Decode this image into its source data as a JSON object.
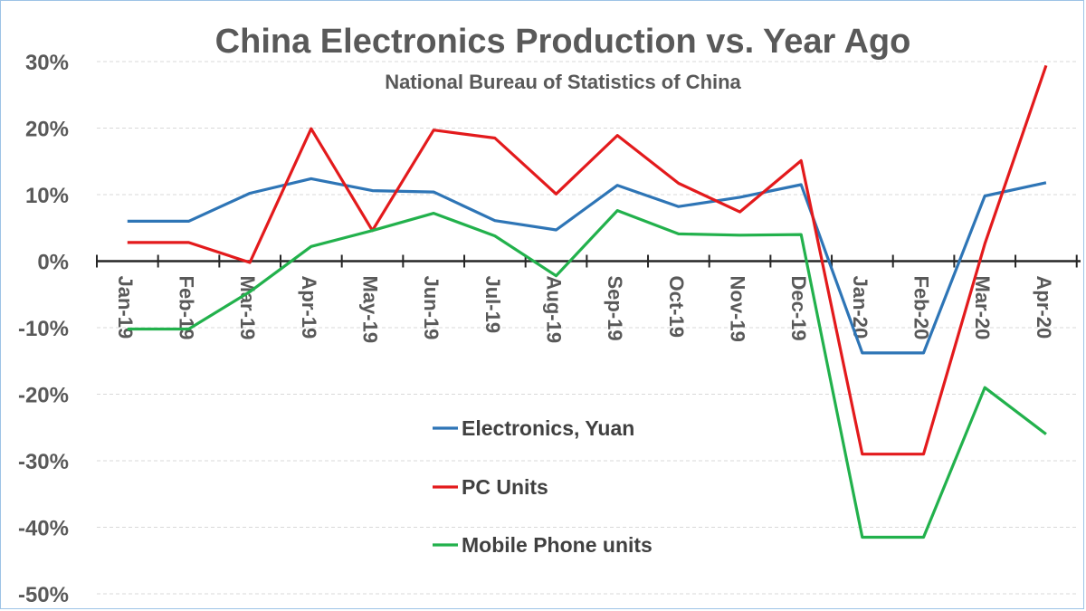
{
  "chart_data": {
    "type": "line",
    "title": "China Electronics Production vs. Year Ago",
    "subtitle": "National Bureau of Statistics of China",
    "xlabel": "",
    "ylabel": "",
    "categories": [
      "Jan-19",
      "Feb-19",
      "Mar-19",
      "Apr-19",
      "May-19",
      "Jun-19",
      "Jul-19",
      "Aug-19",
      "Sep-19",
      "Oct-19",
      "Nov-19",
      "Dec-19",
      "Jan-20",
      "Feb-20",
      "Mar-20",
      "Apr-20"
    ],
    "y_ticks": [
      "30%",
      "20%",
      "10%",
      "0%",
      "-10%",
      "-20%",
      "-30%",
      "-40%",
      "-50%"
    ],
    "ylim": [
      -50,
      30
    ],
    "grid": true,
    "legend_position": "center",
    "series": [
      {
        "name": "Electronics, Yuan",
        "color": "#2e75b6",
        "values": [
          6,
          6,
          10.2,
          12.4,
          10.6,
          10.4,
          6.1,
          4.7,
          11.4,
          8.2,
          9.6,
          11.5,
          -13.8,
          -13.8,
          9.8,
          11.8
        ]
      },
      {
        "name": "PC Units",
        "color": "#e31a1c",
        "values": [
          2.8,
          2.8,
          -0.2,
          19.9,
          4.6,
          19.7,
          18.5,
          10.1,
          18.9,
          11.7,
          7.4,
          15.1,
          -29,
          -29,
          2.6,
          29.4
        ]
      },
      {
        "name": "Mobile Phone units",
        "color": "#22b14c",
        "values": [
          -10.2,
          -10.2,
          -4.6,
          2.2,
          4.6,
          7.2,
          3.8,
          -2.2,
          7.6,
          4.1,
          3.9,
          4,
          -41.5,
          -41.5,
          -19,
          -26
        ]
      }
    ]
  }
}
